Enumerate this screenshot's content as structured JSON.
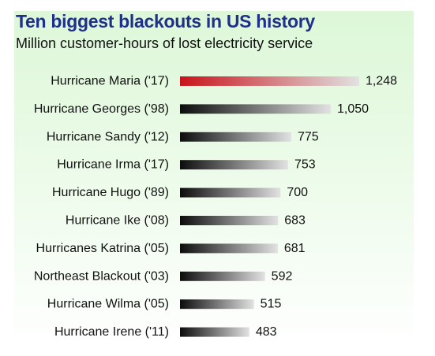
{
  "chart_data": {
    "type": "bar",
    "orientation": "horizontal",
    "title": "Ten biggest blackouts in US history",
    "subtitle": "Million customer-hours of lost electricity service",
    "categories": [
      "Hurricane Maria ('17)",
      "Hurricane Georges ('98)",
      "Hurricane Sandy ('12)",
      "Hurricane Irma ('17)",
      "Hurricane Hugo ('89)",
      "Hurricane Ike ('08)",
      "Hurricanes Katrina ('05)",
      "Northeast Blackout ('03)",
      "Hurricane Wilma ('05)",
      "Hurricane Irene ('11)"
    ],
    "values": [
      1248,
      1050,
      775,
      753,
      700,
      683,
      681,
      592,
      515,
      483
    ],
    "value_labels": [
      "1,248",
      "1,050",
      "775",
      "753",
      "700",
      "683",
      "681",
      "592",
      "515",
      "483"
    ],
    "highlight_index": 0,
    "xlim": [
      0,
      1248
    ],
    "grid": false,
    "legend": "none"
  },
  "colors": {
    "title": "#1e2f8c",
    "highlight_bar_start": "#c8141c",
    "bar_start": "#0c0c0c",
    "bar_end": "#e2e2e2",
    "background_top": "#ddf7d8",
    "background_bottom": "#ffffff"
  }
}
